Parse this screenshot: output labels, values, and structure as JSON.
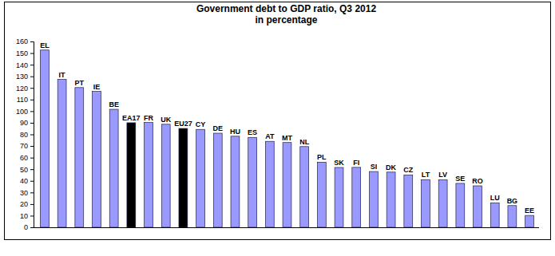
{
  "chart_data": {
    "type": "bar",
    "title": "Government debt to GDP ratio, Q3 2012",
    "subtitle": "in percentage",
    "categories": [
      "EL",
      "IT",
      "PT",
      "IE",
      "BE",
      "EA17",
      "FR",
      "UK",
      "EU27",
      "CY",
      "DE",
      "HU",
      "ES",
      "AT",
      "MT",
      "NL",
      "PL",
      "SK",
      "FI",
      "SI",
      "DK",
      "CZ",
      "LT",
      "LV",
      "SE",
      "RO",
      "LU",
      "BG",
      "EE"
    ],
    "values": [
      152.6,
      127.3,
      120.3,
      117.0,
      101.6,
      90.0,
      90.2,
      88.7,
      85.1,
      84.3,
      81.0,
      78.4,
      77.4,
      74.0,
      73.0,
      69.5,
      56.0,
      51.5,
      51.6,
      48.0,
      47.5,
      45.1,
      41.0,
      40.9,
      37.8,
      35.7,
      21.0,
      18.7,
      10.2
    ],
    "colors": [
      "#9999ff",
      "#9999ff",
      "#9999ff",
      "#9999ff",
      "#9999ff",
      "#000000",
      "#9999ff",
      "#9999ff",
      "#000000",
      "#9999ff",
      "#9999ff",
      "#9999ff",
      "#9999ff",
      "#9999ff",
      "#9999ff",
      "#9999ff",
      "#9999ff",
      "#9999ff",
      "#9999ff",
      "#9999ff",
      "#9999ff",
      "#9999ff",
      "#9999ff",
      "#9999ff",
      "#9999ff",
      "#9999ff",
      "#9999ff",
      "#9999ff",
      "#9999ff"
    ],
    "ylim": [
      0,
      160
    ],
    "yticks": [
      0,
      10,
      20,
      30,
      40,
      50,
      60,
      70,
      80,
      90,
      100,
      110,
      120,
      130,
      140,
      150,
      160
    ],
    "grid": false,
    "tick_labels": "y"
  }
}
